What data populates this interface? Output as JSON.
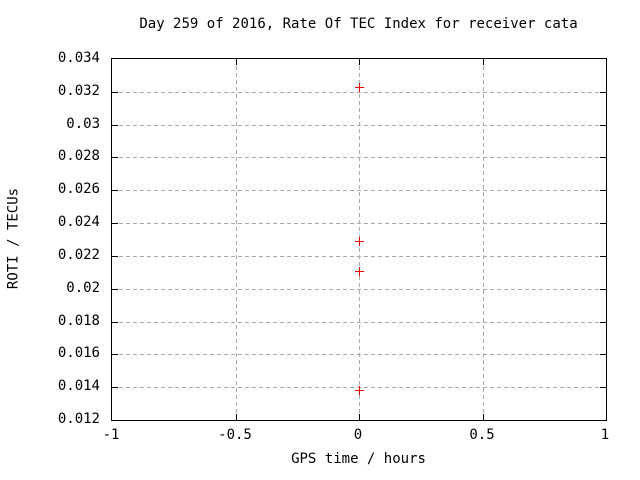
{
  "window": {
    "background_color": "#ffffff",
    "axis_color": "#000000"
  },
  "chart_data": {
    "type": "scatter",
    "title": "Day 259 of 2016, Rate Of TEC Index for receiver cata",
    "xlabel": "GPS time / hours",
    "ylabel": "ROTI / TECUs",
    "xlim": [
      -1,
      1
    ],
    "ylim": [
      0.012,
      0.034
    ],
    "xticks": {
      "values": [
        -1,
        -0.5,
        0,
        0.5,
        1
      ],
      "labels": [
        "-1",
        "-0.5",
        "0",
        "0.5",
        "1"
      ]
    },
    "yticks": {
      "values": [
        0.012,
        0.014,
        0.016,
        0.018,
        0.02,
        0.022,
        0.024,
        0.026,
        0.028,
        0.03,
        0.032,
        0.034
      ],
      "labels": [
        "0.012",
        "0.014",
        "0.016",
        "0.018",
        "0.02",
        "0.022",
        "0.024",
        "0.026",
        "0.028",
        "0.03",
        "0.032",
        "0.034"
      ]
    },
    "grid": true,
    "grid_style": "dashed",
    "grid_color": "#a8a8a8",
    "legend": "none",
    "series": [
      {
        "name": "ROTI",
        "marker": "plus",
        "color": "#ee0000",
        "x": [
          0,
          0,
          0,
          0
        ],
        "y": [
          0.0323,
          0.0229,
          0.0211,
          0.0138
        ]
      }
    ]
  }
}
